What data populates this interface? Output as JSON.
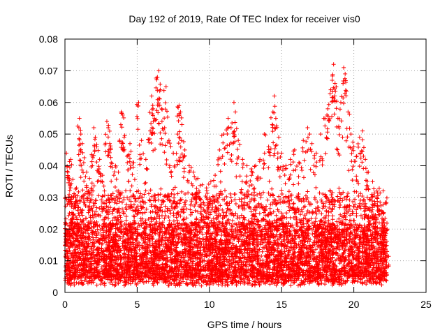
{
  "chart_data": {
    "type": "scatter",
    "title": "Day 192 of 2019, Rate Of TEC Index for receiver vis0",
    "xlabel": "GPS time / hours",
    "ylabel": "ROTI / TECUs",
    "xlim": [
      0,
      25
    ],
    "ylim": [
      0,
      0.08
    ],
    "xticks": [
      0,
      5,
      10,
      15,
      20,
      25
    ],
    "xtick_labels": [
      "0",
      "5",
      "10",
      "15",
      "20",
      "25"
    ],
    "yticks": [
      0,
      0.01,
      0.02,
      0.03,
      0.04,
      0.05,
      0.06,
      0.07,
      0.08
    ],
    "ytick_labels": [
      "0",
      "0.01",
      "0.02",
      "0.03",
      "0.04",
      "0.05",
      "0.06",
      "0.07",
      "0.08"
    ],
    "grid": true,
    "marker": "plus",
    "color": "#ff0000",
    "series": [
      {
        "name": "ROTI",
        "x_range": [
          0.0,
          22.3
        ],
        "points": [
          [
            0.1,
            0.044
          ],
          [
            0.2,
            0.038
          ],
          [
            0.3,
            0.036
          ],
          [
            0.4,
            0.042
          ],
          [
            0.6,
            0.03
          ],
          [
            0.8,
            0.033
          ],
          [
            1.0,
            0.055
          ],
          [
            1.1,
            0.05
          ],
          [
            1.2,
            0.047
          ],
          [
            1.3,
            0.041
          ],
          [
            1.5,
            0.038
          ],
          [
            1.7,
            0.036
          ],
          [
            1.9,
            0.04
          ],
          [
            2.0,
            0.052
          ],
          [
            2.1,
            0.049
          ],
          [
            2.2,
            0.046
          ],
          [
            2.4,
            0.042
          ],
          [
            2.6,
            0.037
          ],
          [
            2.9,
            0.054
          ],
          [
            3.0,
            0.052
          ],
          [
            3.1,
            0.047
          ],
          [
            3.2,
            0.041
          ],
          [
            3.5,
            0.04
          ],
          [
            3.7,
            0.038
          ],
          [
            3.9,
            0.057
          ],
          [
            4.0,
            0.056
          ],
          [
            4.1,
            0.049
          ],
          [
            4.3,
            0.043
          ],
          [
            4.5,
            0.047
          ],
          [
            4.7,
            0.041
          ],
          [
            5.1,
            0.06
          ],
          [
            5.3,
            0.048
          ],
          [
            5.6,
            0.042
          ],
          [
            5.9,
            0.051
          ],
          [
            6.0,
            0.062
          ],
          [
            6.1,
            0.058
          ],
          [
            6.2,
            0.055
          ],
          [
            6.4,
            0.068
          ],
          [
            6.5,
            0.07
          ],
          [
            6.6,
            0.064
          ],
          [
            6.7,
            0.058
          ],
          [
            6.9,
            0.052
          ],
          [
            7.0,
            0.065
          ],
          [
            7.2,
            0.048
          ],
          [
            7.5,
            0.044
          ],
          [
            7.8,
            0.05
          ],
          [
            7.9,
            0.059
          ],
          [
            8.0,
            0.057
          ],
          [
            8.1,
            0.053
          ],
          [
            8.3,
            0.045
          ],
          [
            8.6,
            0.04
          ],
          [
            8.9,
            0.038
          ],
          [
            9.2,
            0.036
          ],
          [
            9.5,
            0.034
          ],
          [
            9.8,
            0.033
          ],
          [
            10.1,
            0.035
          ],
          [
            10.4,
            0.037
          ],
          [
            10.7,
            0.045
          ],
          [
            11.0,
            0.05
          ],
          [
            11.3,
            0.055
          ],
          [
            11.5,
            0.052
          ],
          [
            11.7,
            0.06
          ],
          [
            11.8,
            0.057
          ],
          [
            12.0,
            0.048
          ],
          [
            12.3,
            0.042
          ],
          [
            12.6,
            0.04
          ],
          [
            12.9,
            0.039
          ],
          [
            13.2,
            0.04
          ],
          [
            13.5,
            0.042
          ],
          [
            13.8,
            0.05
          ],
          [
            14.1,
            0.046
          ],
          [
            14.4,
            0.057
          ],
          [
            14.5,
            0.062
          ],
          [
            14.6,
            0.055
          ],
          [
            14.8,
            0.049
          ],
          [
            15.0,
            0.044
          ],
          [
            15.3,
            0.04
          ],
          [
            15.6,
            0.042
          ],
          [
            15.9,
            0.045
          ],
          [
            16.2,
            0.041
          ],
          [
            16.5,
            0.048
          ],
          [
            16.8,
            0.052
          ],
          [
            17.1,
            0.047
          ],
          [
            17.4,
            0.044
          ],
          [
            17.7,
            0.05
          ],
          [
            18.0,
            0.055
          ],
          [
            18.2,
            0.058
          ],
          [
            18.4,
            0.064
          ],
          [
            18.5,
            0.067
          ],
          [
            18.6,
            0.072
          ],
          [
            18.7,
            0.066
          ],
          [
            18.9,
            0.055
          ],
          [
            19.1,
            0.06
          ],
          [
            19.3,
            0.071
          ],
          [
            19.4,
            0.069
          ],
          [
            19.6,
            0.057
          ],
          [
            19.8,
            0.05
          ],
          [
            20.0,
            0.046
          ],
          [
            20.2,
            0.043
          ],
          [
            20.4,
            0.049
          ],
          [
            20.6,
            0.051
          ],
          [
            20.8,
            0.042
          ],
          [
            21.0,
            0.038
          ],
          [
            21.3,
            0.035
          ],
          [
            21.6,
            0.032
          ],
          [
            21.9,
            0.025
          ],
          [
            22.1,
            0.022
          ],
          [
            22.3,
            0.02
          ]
        ],
        "dense_band": {
          "description": "dense cloud of markers across all hours",
          "y_range": [
            0.002,
            0.03
          ]
        }
      }
    ]
  }
}
